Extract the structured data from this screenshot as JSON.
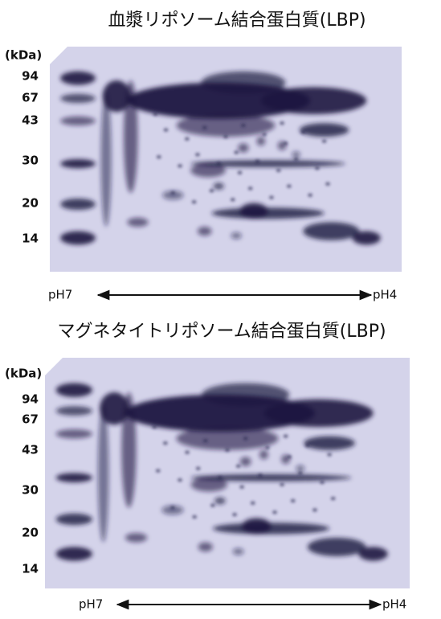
{
  "panels": [
    {
      "title": "血漿リポソーム結合蛋白質(LBP)",
      "unit": "(kDa)",
      "markers": [
        "94",
        "67",
        "43",
        "30",
        "20",
        "14"
      ],
      "ph_left": "pH7",
      "ph_right": "pH4"
    },
    {
      "title": "マグネタイトリポソーム結合蛋白質(LBP)",
      "unit": "(kDa)",
      "markers": [
        "94",
        "67",
        "43",
        "30",
        "20",
        "14"
      ],
      "ph_left": "pH7",
      "ph_right": "pH4"
    }
  ]
}
